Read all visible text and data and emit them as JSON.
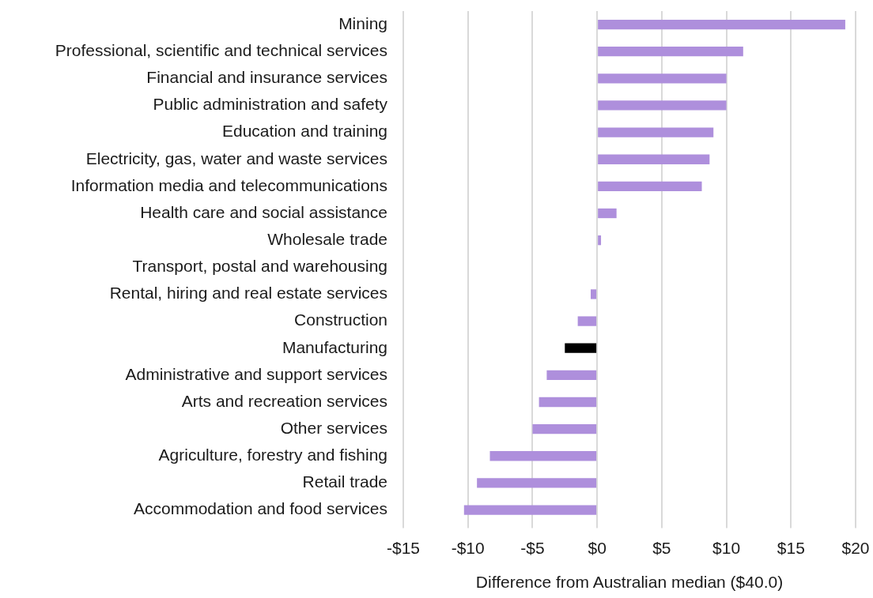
{
  "chart_data": {
    "type": "bar",
    "orientation": "horizontal",
    "categories": [
      "Mining",
      "Professional, scientific and technical services",
      "Financial and insurance services",
      "Public administration and safety",
      "Education and training",
      "Electricity, gas, water and waste services",
      "Information media and telecommunications",
      "Health care and social assistance",
      "Wholesale trade",
      "Transport, postal and warehousing",
      "Rental, hiring and real estate services",
      "Construction",
      "Manufacturing",
      "Administrative and support services",
      "Arts and recreation services",
      "Other services",
      "Agriculture, forestry and fishing",
      "Retail trade",
      "Accommodation and food services"
    ],
    "values": [
      19.2,
      11.3,
      10.0,
      10.0,
      9.0,
      8.7,
      8.1,
      1.5,
      0.3,
      0,
      -0.5,
      -1.5,
      -2.5,
      -3.9,
      -4.5,
      -5.0,
      -8.3,
      -9.3,
      -10.3
    ],
    "colors": [
      "#ae8fdc",
      "#ae8fdc",
      "#ae8fdc",
      "#ae8fdc",
      "#ae8fdc",
      "#ae8fdc",
      "#ae8fdc",
      "#ae8fdc",
      "#ae8fdc",
      "#ae8fdc",
      "#ae8fdc",
      "#ae8fdc",
      "#000000",
      "#ae8fdc",
      "#ae8fdc",
      "#ae8fdc",
      "#ae8fdc",
      "#ae8fdc",
      "#ae8fdc"
    ],
    "xlabel": "Difference from Australian median ($40.0)",
    "xlim": [
      -15,
      20
    ],
    "xticks": [
      {
        "value": -15,
        "label": "-$15"
      },
      {
        "value": -10,
        "label": "-$10"
      },
      {
        "value": -5,
        "label": "-$5"
      },
      {
        "value": 0,
        "label": "$0"
      },
      {
        "value": 5,
        "label": "$5"
      },
      {
        "value": 10,
        "label": "$10"
      },
      {
        "value": 15,
        "label": "$15"
      },
      {
        "value": 20,
        "label": "$20"
      }
    ],
    "grid": "x"
  }
}
